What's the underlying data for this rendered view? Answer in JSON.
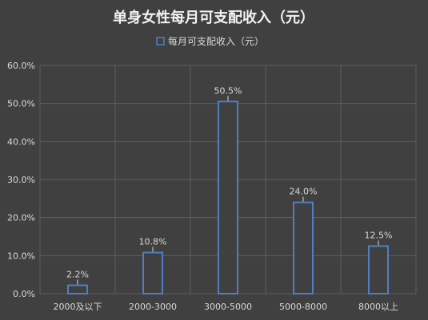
{
  "chart_data": {
    "type": "bar",
    "title": "单身女性每月可支配收入（元）",
    "categories": [
      "2000及以下",
      "2000-3000",
      "3000-5000",
      "5000-8000",
      "8000以上"
    ],
    "series": [
      {
        "name": "每月可支配收入（元）",
        "values": [
          2.2,
          10.8,
          50.5,
          24.0,
          12.5
        ]
      }
    ],
    "data_labels": [
      "2.2%",
      "10.8%",
      "50.5%",
      "24.0%",
      "12.5%"
    ],
    "yticks": [
      "0.0%",
      "10.0%",
      "20.0%",
      "30.0%",
      "40.0%",
      "50.0%",
      "60.0%"
    ],
    "ylim": [
      0,
      60
    ],
    "grid": true,
    "legend_position": "top",
    "colors": {
      "background": "#404040",
      "bar_fill": "#404040",
      "bar_stroke": "#4f7fc2",
      "grid": "#5e5e5e",
      "text": "#d9d9d9",
      "title": "#f2f2f2"
    }
  }
}
